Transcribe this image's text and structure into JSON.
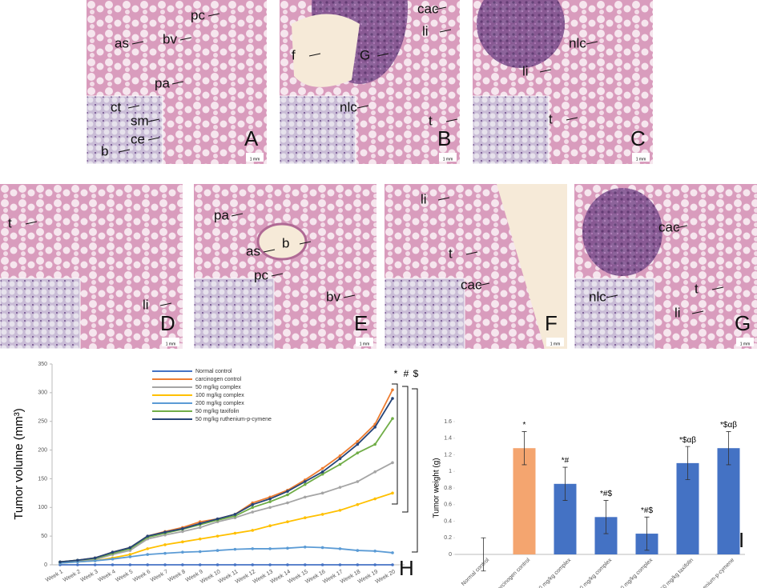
{
  "panels": [
    {
      "letter": "A",
      "scale_bar": "1 mm",
      "labels": [
        "pc",
        "bv",
        "as",
        "pa",
        "ct",
        "sm",
        "ce",
        "b"
      ]
    },
    {
      "letter": "B",
      "scale_bar": "1 mm",
      "labels": [
        "cac",
        "li",
        "f",
        "G",
        "nlc",
        "t"
      ]
    },
    {
      "letter": "C",
      "scale_bar": "1 mm",
      "labels": [
        "nlc",
        "li",
        "t"
      ]
    },
    {
      "letter": "D",
      "scale_bar": "1 mm",
      "labels": [
        "t",
        "li"
      ]
    },
    {
      "letter": "E",
      "scale_bar": "1 mm",
      "labels": [
        "pa",
        "b",
        "as",
        "pc",
        "bv"
      ]
    },
    {
      "letter": "F",
      "scale_bar": "1 mm",
      "labels": [
        "li",
        "t",
        "cac"
      ]
    },
    {
      "letter": "G",
      "scale_bar": "1 mm",
      "labels": [
        "cac",
        "t",
        "li",
        "nlc"
      ]
    }
  ],
  "chart_data": [
    {
      "type": "line",
      "panel_label": "H",
      "y_label": "Tumor volume (mm³)",
      "categories": [
        "Week 1",
        "Week 2",
        "Week 3",
        "Week 4",
        "Week 5",
        "Week 6",
        "Week 7",
        "Week 8",
        "Week 9",
        "Week 10",
        "Week 11",
        "Week 12",
        "Week 13",
        "Week 14",
        "Week 15",
        "Week 16",
        "Week 17",
        "Week 18",
        "Week 19",
        "Week 20"
      ],
      "series": [
        {
          "name": "Normal control",
          "color": "#4472c4",
          "values": [
            0,
            0,
            0,
            0,
            0,
            0,
            0,
            0,
            0,
            0,
            0,
            0,
            0,
            0,
            0,
            0,
            0,
            0,
            0,
            0
          ]
        },
        {
          "name": "carcinogen control",
          "color": "#ed7d31",
          "values": [
            5,
            8,
            12,
            22,
            30,
            50,
            58,
            65,
            75,
            80,
            88,
            108,
            118,
            130,
            148,
            168,
            190,
            215,
            245,
            305
          ]
        },
        {
          "name": "50 mg/kg complex",
          "color": "#a5a5a5",
          "values": [
            4,
            6,
            9,
            18,
            25,
            45,
            52,
            58,
            65,
            75,
            82,
            92,
            100,
            108,
            118,
            125,
            135,
            145,
            162,
            178
          ]
        },
        {
          "name": "100 mg/kg complex",
          "color": "#ffc000",
          "values": [
            3,
            5,
            7,
            12,
            18,
            28,
            35,
            40,
            45,
            50,
            55,
            60,
            68,
            75,
            82,
            88,
            95,
            105,
            115,
            125
          ]
        },
        {
          "name": "200 mg/kg complex",
          "color": "#5b9bd5",
          "values": [
            3,
            5,
            7,
            10,
            14,
            18,
            20,
            22,
            23,
            25,
            27,
            28,
            28,
            29,
            31,
            30,
            28,
            25,
            24,
            21
          ]
        },
        {
          "name": "50 mg/kg taxifolin",
          "color": "#70ad47",
          "values": [
            5,
            8,
            11,
            20,
            28,
            48,
            55,
            62,
            70,
            78,
            85,
            100,
            110,
            122,
            140,
            158,
            175,
            195,
            210,
            255
          ]
        },
        {
          "name": "50 mg/kg ruthenium-p-cymene",
          "color": "#264478",
          "values": [
            5,
            8,
            12,
            22,
            30,
            50,
            57,
            63,
            72,
            80,
            88,
            105,
            115,
            128,
            145,
            162,
            185,
            210,
            240,
            290
          ]
        }
      ],
      "ylim": [
        0,
        350
      ],
      "yticks": [
        0,
        50,
        100,
        150,
        200,
        250,
        300,
        350
      ],
      "annotations": [
        "*",
        "#",
        "$"
      ]
    },
    {
      "type": "bar",
      "panel_label": "I",
      "y_label": "Tumor weight (g)",
      "categories": [
        "Normal control",
        "Carcinogen control",
        "50 mg/kg complex",
        "100 mg/kg complex",
        "200 mg/kg complex",
        "50 mg/kg taxifolin",
        "50 mg/kg ruthenium-p-cymene"
      ],
      "values": [
        0,
        1.28,
        0.85,
        0.45,
        0.25,
        1.1,
        1.28
      ],
      "errors": [
        0.2,
        0.2,
        0.2,
        0.2,
        0.2,
        0.2,
        0.2
      ],
      "bar_labels": [
        null,
        "*",
        "*#",
        "*#$",
        "*#$",
        "*$αβ",
        "*$αβ"
      ],
      "colors": [
        "#4472c4",
        "#f4a56f",
        "#4472c4",
        "#4472c4",
        "#4472c4",
        "#4472c4",
        "#4472c4"
      ],
      "ylim": [
        0,
        1.6
      ],
      "yticks": [
        0,
        0.2,
        0.4,
        0.6,
        0.8,
        1,
        1.2,
        1.4,
        1.6
      ]
    }
  ]
}
